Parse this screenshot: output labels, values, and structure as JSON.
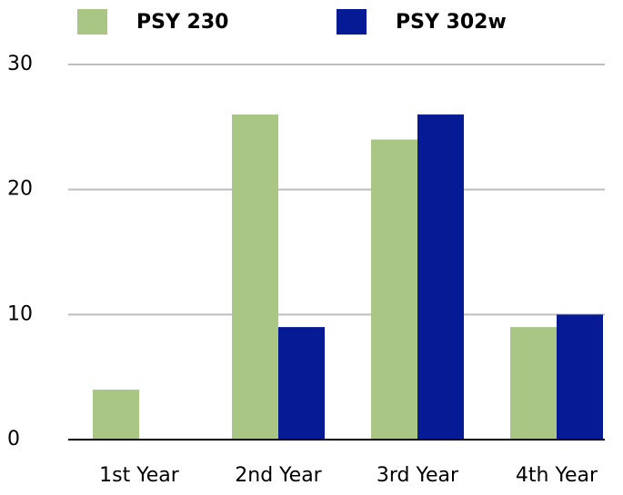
{
  "chart_data": {
    "type": "bar",
    "categories": [
      "1st Year",
      "2nd Year",
      "3rd Year",
      "4th Year"
    ],
    "series": [
      {
        "name": "PSY 230",
        "color": "#a9c685",
        "values": [
          4,
          26,
          24,
          9
        ]
      },
      {
        "name": "PSY 302w",
        "color": "#051a94",
        "values": [
          0,
          9,
          26,
          10
        ]
      }
    ],
    "ylim": [
      0,
      30
    ],
    "yticks": [
      0,
      10,
      20,
      30
    ],
    "grid": true,
    "legend": "top"
  }
}
